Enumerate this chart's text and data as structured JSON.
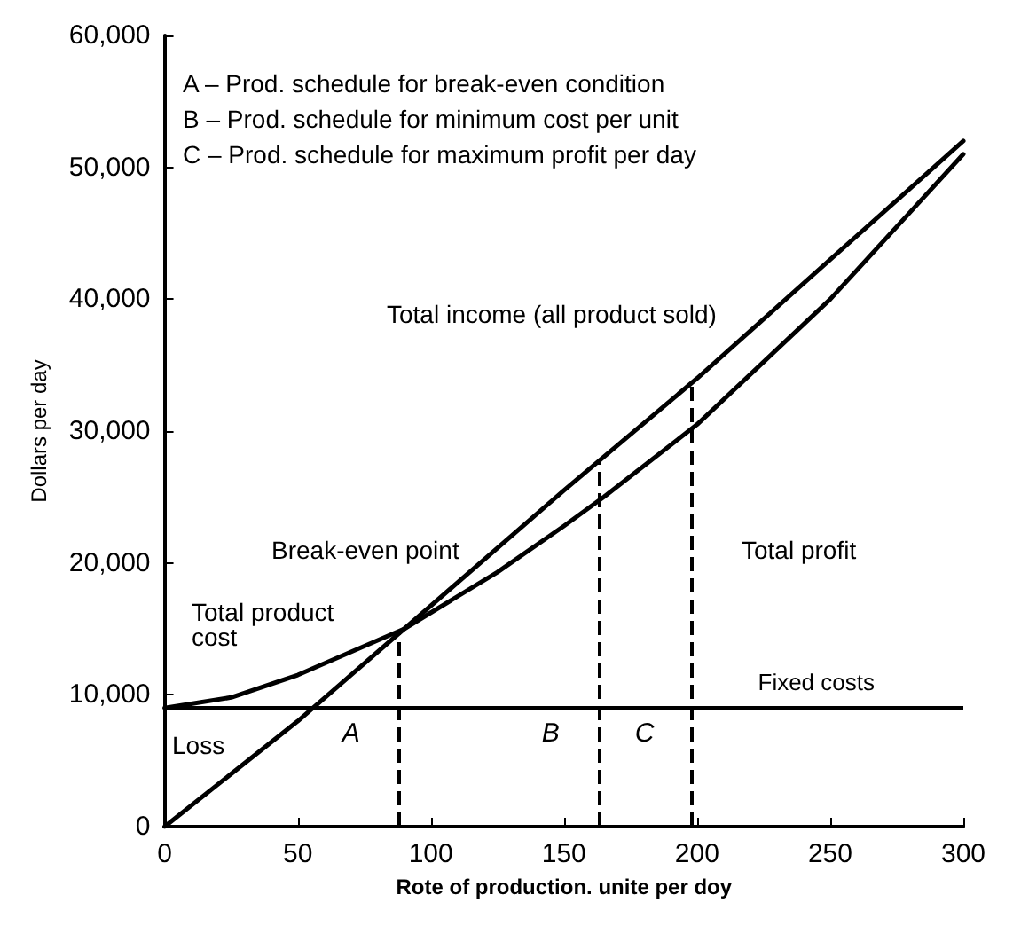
{
  "chart_data": {
    "type": "line",
    "xlabel": "Rote of production. unite per doy",
    "ylabel": "Dollars per day",
    "series": [
      {
        "color": "#000000",
        "x": [
          0,
          50,
          90,
          150,
          200,
          250,
          300
        ],
        "values": [
          0,
          8000,
          15000,
          25500,
          34000,
          43000,
          52000
        ]
      },
      {
        "color": "#000000",
        "x": [
          0,
          25,
          50,
          90,
          125,
          150,
          165,
          200,
          250,
          300
        ],
        "values": [
          9000,
          9800,
          11500,
          15000,
          19300,
          22800,
          25000,
          30500,
          40000,
          51000
        ]
      }
    ],
    "xlim": [
      0,
      300
    ],
    "xticks": [
      0,
      50,
      100,
      150,
      200,
      250,
      300
    ],
    "ylim": [
      0,
      60000
    ],
    "yticks": [
      0,
      {
        "value": 10000,
        "label": "10,000"
      },
      {
        "value": 20000,
        "label": "20,000"
      },
      {
        "value": 30000,
        "label": "30,000"
      },
      {
        "value": 40000,
        "label": "40,000"
      },
      {
        "value": 50000,
        "label": "50,000"
      },
      {
        "value": 60000,
        "label": "60,000"
      }
    ],
    "ref_lines": [
      {
        "axis": "y",
        "value": 9000,
        "label": "Fixed costs",
        "line_style": "solid",
        "color": "#000000"
      },
      {
        "axis": "x",
        "value": 88,
        "label": "A",
        "line_style": "dashed",
        "color": "#000000"
      },
      {
        "axis": "x",
        "value": 163,
        "label": "B",
        "line_style": "dashed",
        "color": "#000000"
      },
      {
        "axis": "x",
        "value": 198,
        "label": "C",
        "line_style": "dashed",
        "color": "#000000"
      }
    ],
    "annotations": [
      "A – Prod. schedule for break-even condition",
      "B – Prod. schedule for minimum cost per unit",
      "C – Prod. schedule for maximum profit per day",
      "Total income (all product sold)",
      "Total profit",
      "Break-even point",
      "Total product cost",
      "Loss"
    ],
    "grid": false,
    "marker": "none",
    "line_style": "solid"
  }
}
